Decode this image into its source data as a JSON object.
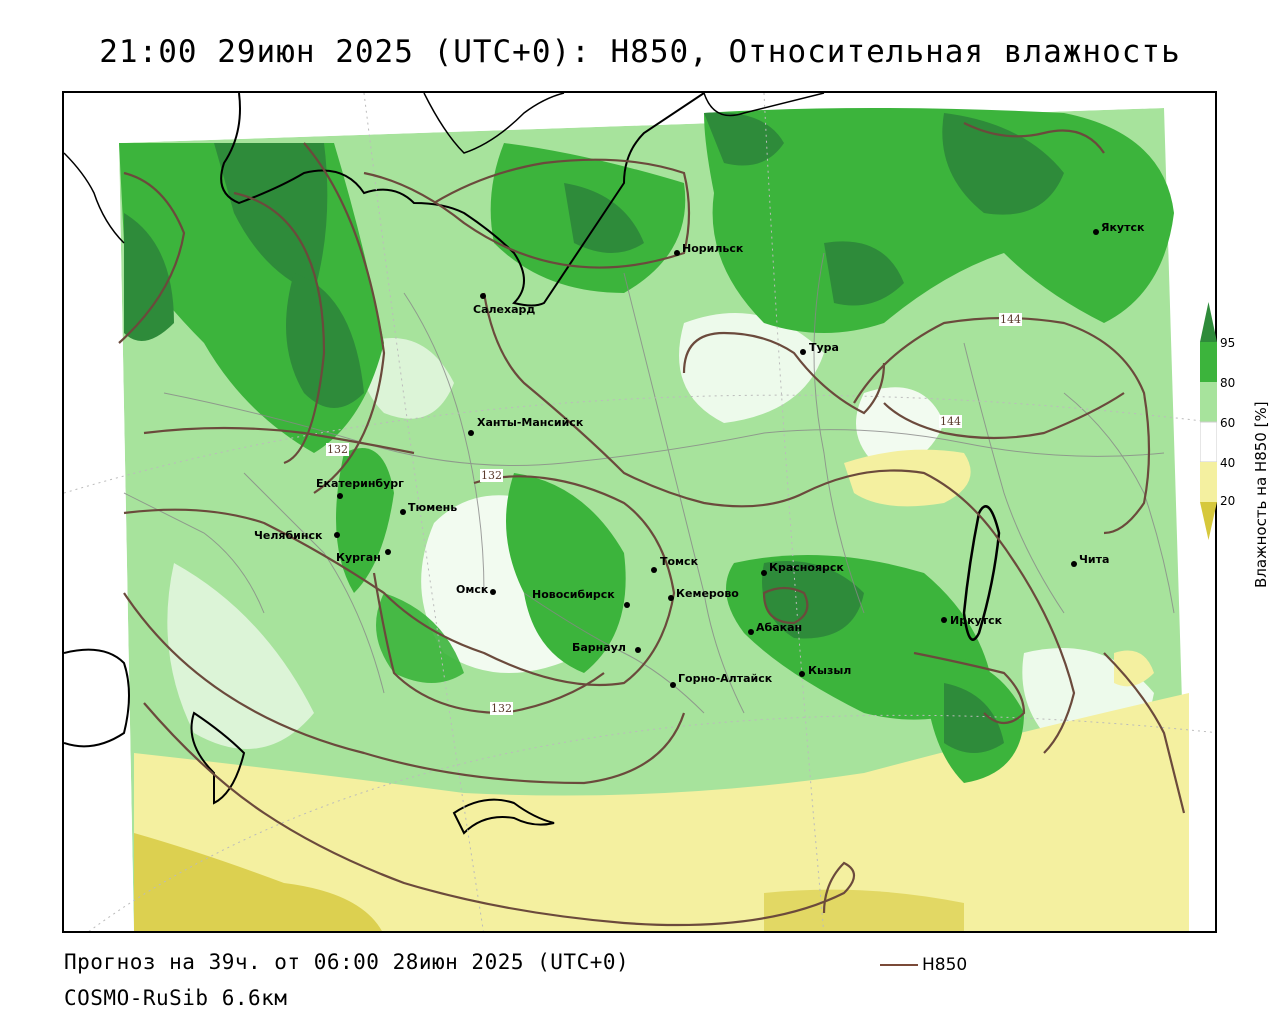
{
  "title": "21:00 29июн 2025 (UTC+0): Н850, Относительная влажность",
  "footer": {
    "forecast": "Прогноз на 39ч. от 06:00 28июн 2025 (UTC+0)",
    "model": "COSMO-RuSib 6.6км",
    "legend_label": "H850"
  },
  "colorbar": {
    "label": "Влажность на H850 [%]",
    "ticks": [
      "95",
      "80",
      "60",
      "40",
      "20"
    ],
    "colors": {
      "above95": "#2e8b3a",
      "c80_95": "#3cb43c",
      "c60_80": "#a7e39c",
      "c40_60": "#ffffff",
      "c20_40": "#f4f0a0",
      "below20": "#d6c83c"
    }
  },
  "contour_labels": [
    "144",
    "144",
    "132",
    "132",
    "132"
  ],
  "cities": [
    {
      "name": "Якутск"
    },
    {
      "name": "Норильск"
    },
    {
      "name": "Салехард"
    },
    {
      "name": "Тура"
    },
    {
      "name": "Ханты-Мансийск"
    },
    {
      "name": "Екатеринбург"
    },
    {
      "name": "Тюмень"
    },
    {
      "name": "Челябинск"
    },
    {
      "name": "Курган"
    },
    {
      "name": "Омск"
    },
    {
      "name": "Новосибирск"
    },
    {
      "name": "Томск"
    },
    {
      "name": "Кемерово"
    },
    {
      "name": "Барнаул"
    },
    {
      "name": "Горно-Алтайск"
    },
    {
      "name": "Красноярск"
    },
    {
      "name": "Абакан"
    },
    {
      "name": "Кызыл"
    },
    {
      "name": "Иркутск"
    },
    {
      "name": "Чита"
    }
  ]
}
